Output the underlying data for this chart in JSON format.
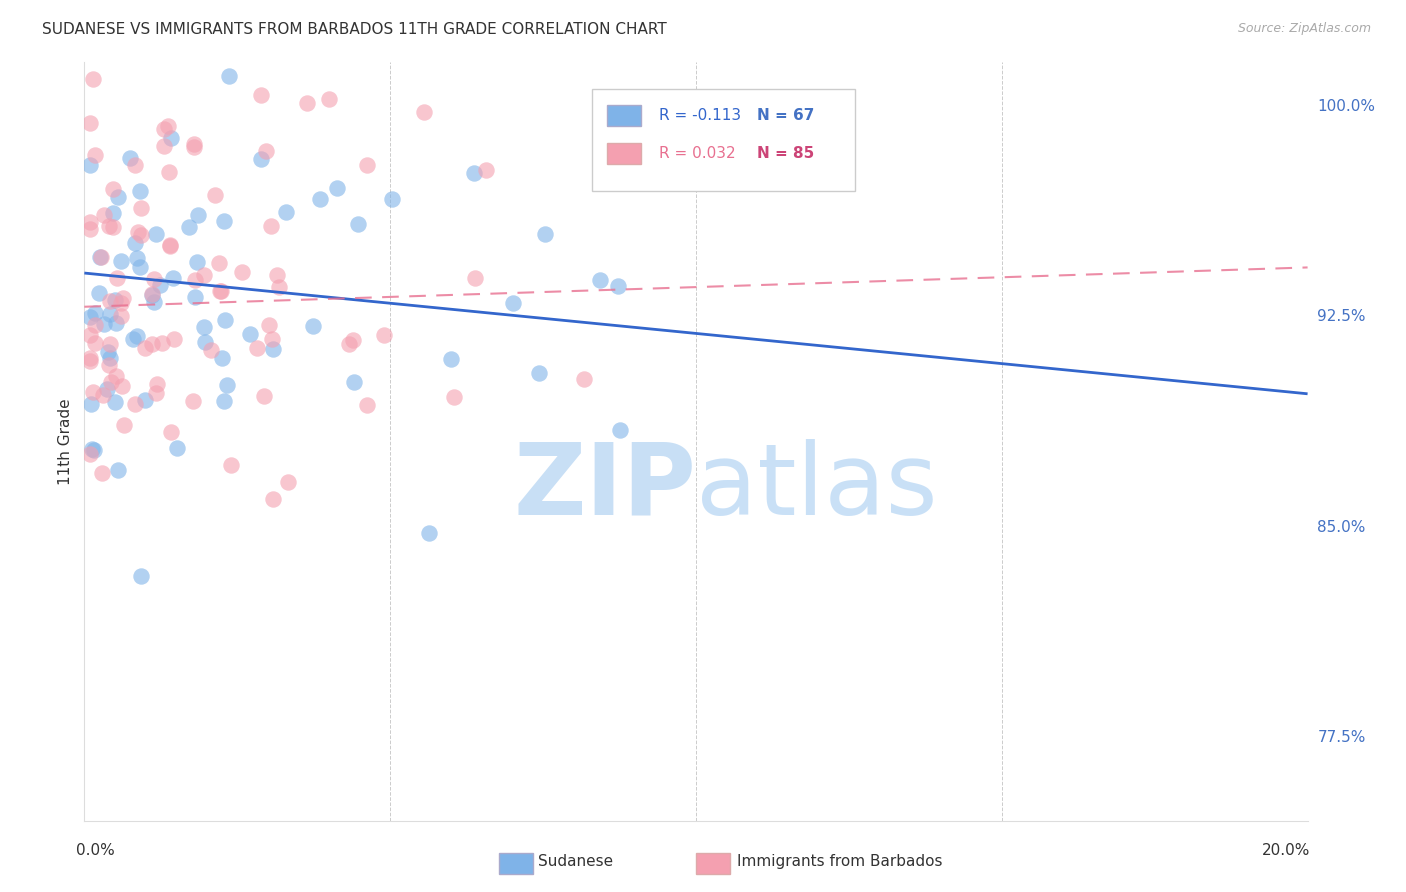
{
  "title": "SUDANESE VS IMMIGRANTS FROM BARBADOS 11TH GRADE CORRELATION CHART",
  "source": "Source: ZipAtlas.com",
  "ylabel": "11th Grade",
  "ylabel_right_labels": [
    "100.0%",
    "92.5%",
    "85.0%",
    "77.5%"
  ],
  "ylabel_right_values": [
    1.0,
    0.925,
    0.85,
    0.775
  ],
  "legend_blue_R": "R = -0.113",
  "legend_blue_N": "N = 67",
  "legend_pink_R": "R = 0.032",
  "legend_pink_N": "N = 85",
  "blue_color": "#7fb3e8",
  "pink_color": "#f4a0b0",
  "blue_line_color": "#3366cc",
  "pink_line_color": "#e87090",
  "xlim": [
    0.0,
    0.2
  ],
  "ylim": [
    0.745,
    1.015
  ],
  "blue_R": -0.113,
  "blue_N": 67,
  "pink_R": 0.032,
  "pink_N": 85,
  "blue_line_x": [
    0.0,
    0.2
  ],
  "blue_line_y": [
    0.94,
    0.897
  ],
  "pink_line_x": [
    0.0,
    0.2
  ],
  "pink_line_y": [
    0.928,
    0.942
  ]
}
